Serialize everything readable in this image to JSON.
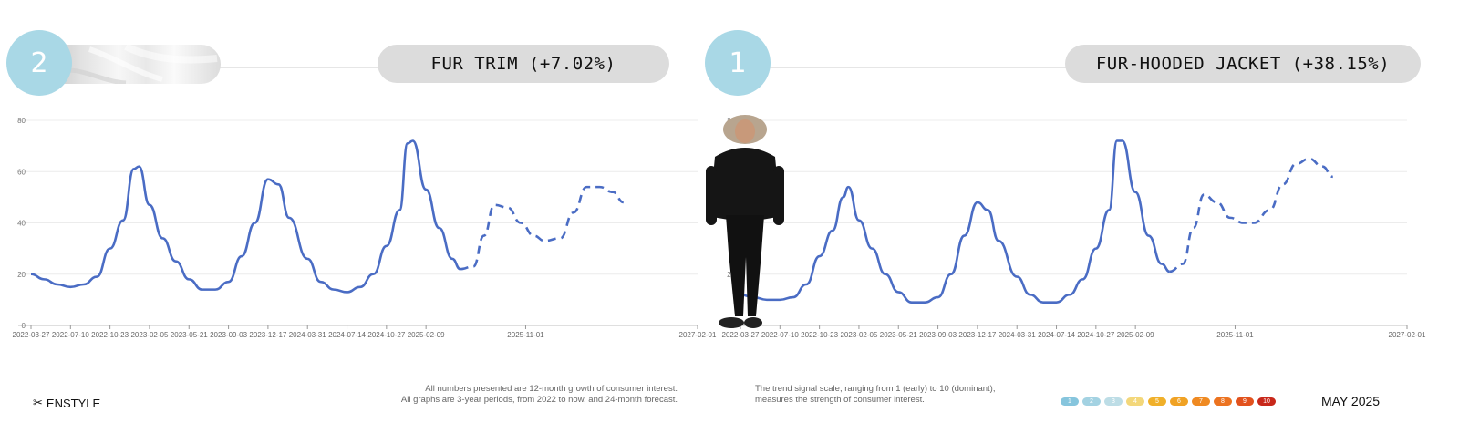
{
  "panels": [
    {
      "rank": "2",
      "title": "FUR TRIM (+7.02%)",
      "image_alt": "fur texture swatch"
    },
    {
      "rank": "1",
      "title": "FUR-HOODED JACKET (+38.15%)",
      "image_alt": "woman wearing black fur-hooded jacket"
    }
  ],
  "chart_data": [
    {
      "type": "line",
      "title": "FUR TRIM (+7.02%)",
      "xlabel": "",
      "ylabel": "",
      "ylim": [
        0,
        80
      ],
      "yticks": [
        0,
        20,
        40,
        60,
        80
      ],
      "xticks": [
        "2022-03-27",
        "2022-07-10",
        "2022-10-23",
        "2023-02-05",
        "2023-05-21",
        "2023-09-03",
        "2023-12-17",
        "2024-03-31",
        "2024-07-14",
        "2024-10-27",
        "2025-02-09",
        "2025-11-01",
        "2027-02-01"
      ],
      "grid": true,
      "series": [
        {
          "style": "solid",
          "color": "#4a6cc4",
          "x": [
            "2022-03-27",
            "2022-05-01",
            "2022-06-05",
            "2022-07-10",
            "2022-08-14",
            "2022-09-18",
            "2022-10-23",
            "2022-11-27",
            "2022-12-25",
            "2023-01-08",
            "2023-02-05",
            "2023-03-12",
            "2023-04-16",
            "2023-05-21",
            "2023-06-25",
            "2023-07-30",
            "2023-09-03",
            "2023-10-08",
            "2023-11-12",
            "2023-12-17",
            "2024-01-14",
            "2024-02-11",
            "2024-03-31",
            "2024-05-05",
            "2024-06-09",
            "2024-07-14",
            "2024-08-18",
            "2024-09-22",
            "2024-10-27",
            "2024-12-01",
            "2024-12-22",
            "2025-01-05",
            "2025-02-09",
            "2025-03-16",
            "2025-04-20",
            "2025-05-11"
          ],
          "y": [
            20,
            18,
            16,
            15,
            16,
            19,
            30,
            41,
            61,
            62,
            47,
            34,
            25,
            18,
            14,
            14,
            17,
            27,
            40,
            57,
            55,
            42,
            26,
            17,
            14,
            13,
            15,
            20,
            31,
            45,
            71,
            72,
            53,
            38,
            26,
            22
          ]
        },
        {
          "style": "dashed",
          "color": "#4a6cc4",
          "x": [
            "2025-05-11",
            "2025-06-15",
            "2025-07-13",
            "2025-08-10",
            "2025-09-14",
            "2025-10-19",
            "2025-11-23",
            "2025-12-21",
            "2026-02-01",
            "2026-03-08",
            "2026-04-12",
            "2026-05-17",
            "2026-06-21",
            "2026-07-19"
          ],
          "y": [
            22,
            23,
            35,
            47,
            46,
            40,
            35,
            33,
            34,
            44,
            54,
            54,
            52,
            48
          ]
        }
      ]
    },
    {
      "type": "line",
      "title": "FUR-HOODED JACKET (+38.15%)",
      "xlabel": "",
      "ylabel": "",
      "ylim": [
        0,
        80
      ],
      "yticks": [
        0,
        20,
        80
      ],
      "xticks": [
        "2022-03-27",
        "2022-07-10",
        "2022-10-23",
        "2023-02-05",
        "2023-05-21",
        "2023-09-03",
        "2023-12-17",
        "2024-03-31",
        "2024-07-14",
        "2024-10-27",
        "2025-02-09",
        "2025-11-01",
        "2027-02-01"
      ],
      "grid": true,
      "series": [
        {
          "style": "solid",
          "color": "#4a6cc4",
          "x": [
            "2022-03-27",
            "2022-05-01",
            "2022-06-05",
            "2022-07-10",
            "2022-08-14",
            "2022-09-18",
            "2022-10-23",
            "2022-11-27",
            "2022-12-25",
            "2023-01-08",
            "2023-02-05",
            "2023-03-12",
            "2023-04-16",
            "2023-05-21",
            "2023-06-25",
            "2023-07-30",
            "2023-09-03",
            "2023-10-08",
            "2023-11-12",
            "2023-12-17",
            "2024-01-14",
            "2024-02-11",
            "2024-03-31",
            "2024-05-05",
            "2024-06-09",
            "2024-07-14",
            "2024-08-18",
            "2024-09-22",
            "2024-10-27",
            "2024-12-01",
            "2024-12-22",
            "2025-01-05",
            "2025-02-09",
            "2025-03-16",
            "2025-04-20",
            "2025-05-11"
          ],
          "y": [
            12,
            11,
            10,
            10,
            11,
            16,
            27,
            37,
            50,
            54,
            41,
            30,
            20,
            13,
            9,
            9,
            11,
            20,
            35,
            48,
            45,
            33,
            19,
            12,
            9,
            9,
            12,
            18,
            30,
            45,
            72,
            72,
            52,
            35,
            24,
            21
          ]
        },
        {
          "style": "dashed",
          "color": "#4a6cc4",
          "x": [
            "2025-05-11",
            "2025-06-15",
            "2025-07-13",
            "2025-08-10",
            "2025-09-14",
            "2025-10-19",
            "2025-11-23",
            "2025-12-21",
            "2026-02-01",
            "2026-03-08",
            "2026-04-12",
            "2026-05-17",
            "2026-06-21",
            "2026-07-19"
          ],
          "y": [
            21,
            24,
            38,
            51,
            48,
            42,
            40,
            40,
            45,
            55,
            63,
            65,
            62,
            58
          ]
        }
      ]
    }
  ],
  "footer": {
    "brand": "ENSTYLE",
    "note_left_1": "All numbers presented are 12-month growth of consumer interest.",
    "note_left_2": "All graphs are 3-year periods, from 2022 to now, and 24-month forecast.",
    "note_right_1": "The trend signal scale, ranging from 1 (early) to 10 (dominant),",
    "note_right_2": "measures the strength of consumer interest.",
    "date": "MAY 2025",
    "scale": [
      {
        "label": "1",
        "color": "#86c5dd"
      },
      {
        "label": "2",
        "color": "#a3d2e2"
      },
      {
        "label": "3",
        "color": "#bddde6"
      },
      {
        "label": "4",
        "color": "#f3d77a"
      },
      {
        "label": "5",
        "color": "#f0b02a"
      },
      {
        "label": "6",
        "color": "#f0a224"
      },
      {
        "label": "7",
        "color": "#ef8a22"
      },
      {
        "label": "8",
        "color": "#ec7320"
      },
      {
        "label": "9",
        "color": "#e2521d"
      },
      {
        "label": "10",
        "color": "#c8281a"
      }
    ]
  }
}
